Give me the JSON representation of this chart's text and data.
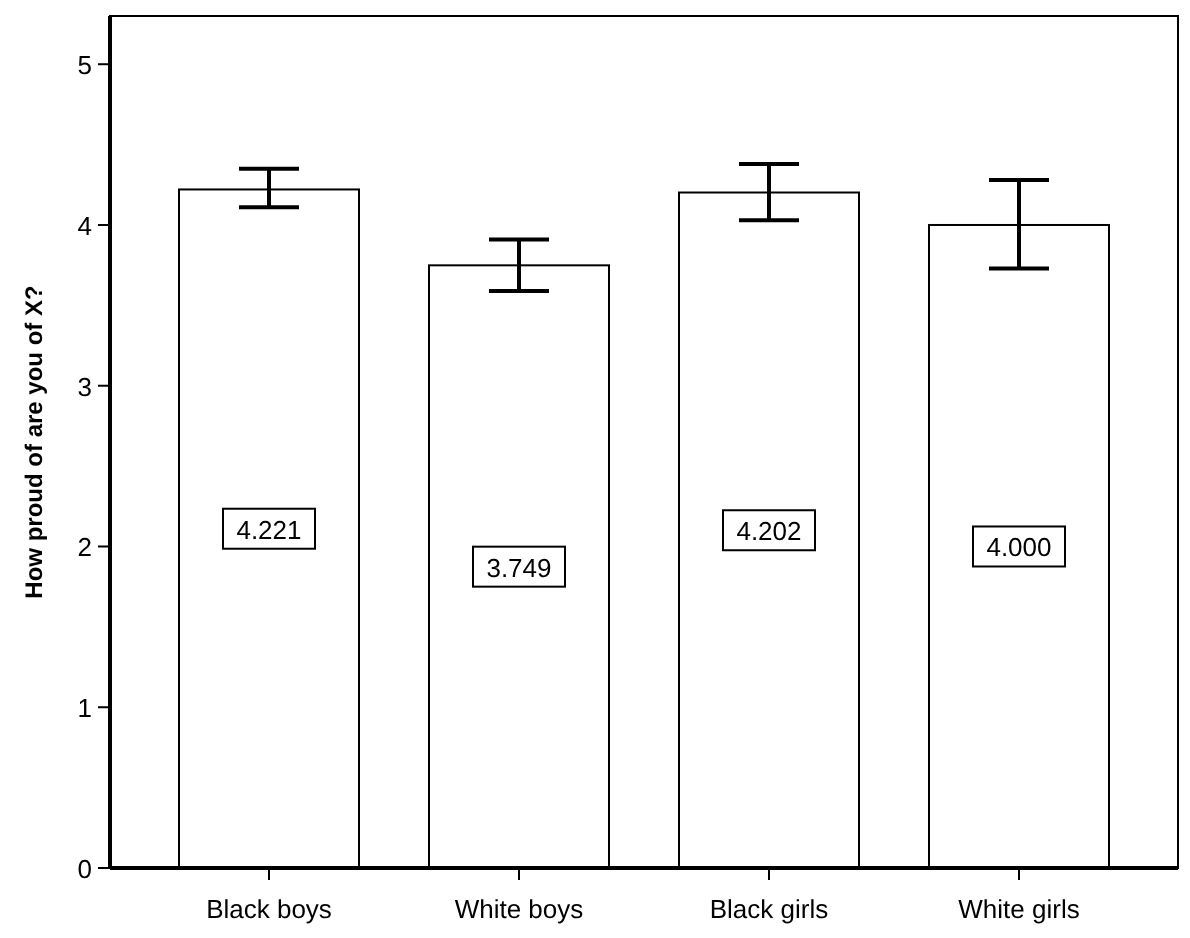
{
  "chart_data": {
    "type": "bar",
    "ylabel": "How proud of are you of X?",
    "categories": [
      "Black boys",
      "White boys",
      "Black girls",
      "White girls"
    ],
    "values": [
      4.221,
      3.749,
      4.202,
      4.0
    ],
    "value_labels": [
      "4.221",
      "3.749",
      "4.202",
      "4.000"
    ],
    "errors": [
      [
        4.11,
        4.35
      ],
      [
        3.59,
        3.91
      ],
      [
        4.03,
        4.38
      ],
      [
        3.73,
        4.28
      ]
    ],
    "color": "#ffffff",
    "ylim": [
      0,
      5.3
    ],
    "yticks": [
      0,
      1,
      2,
      3,
      4,
      5
    ],
    "grid": false
  }
}
